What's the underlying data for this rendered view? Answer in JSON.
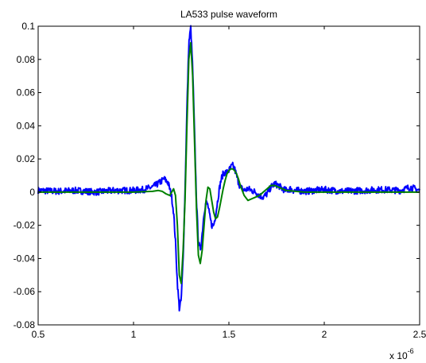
{
  "chart_data": {
    "type": "line",
    "title": "LA533 pulse waveform",
    "xlabel": "",
    "ylabel": "",
    "xlim": [
      0.5,
      2.5
    ],
    "ylim": [
      -0.08,
      0.1
    ],
    "x_ticks": [
      0.5,
      1,
      1.5,
      2,
      2.5
    ],
    "x_tick_labels": [
      "0.5",
      "1",
      "1.5",
      "2",
      "2.5"
    ],
    "y_ticks": [
      -0.08,
      -0.06,
      -0.04,
      -0.02,
      0,
      0.02,
      0.04,
      0.06,
      0.08,
      0.1
    ],
    "y_tick_labels": [
      "-0.08",
      "-0.06",
      "-0.04",
      "-0.02",
      "0",
      "0.02",
      "0.04",
      "0.06",
      "0.08",
      "0.1"
    ],
    "x_multiplier": {
      "base": "x 10",
      "exponent": "-6"
    },
    "grid": false,
    "legend": "none",
    "series": [
      {
        "color": "#0000ff",
        "x": [
          0.5,
          0.6,
          0.7,
          0.8,
          0.9,
          1.0,
          1.05,
          1.1,
          1.14,
          1.16,
          1.18,
          1.19,
          1.2,
          1.21,
          1.22,
          1.23,
          1.24,
          1.25,
          1.26,
          1.27,
          1.28,
          1.29,
          1.3,
          1.31,
          1.32,
          1.33,
          1.34,
          1.35,
          1.36,
          1.37,
          1.38,
          1.39,
          1.4,
          1.41,
          1.42,
          1.43,
          1.44,
          1.45,
          1.46,
          1.47,
          1.48,
          1.49,
          1.5,
          1.51,
          1.52,
          1.53,
          1.54,
          1.55,
          1.56,
          1.58,
          1.6,
          1.62,
          1.64,
          1.66,
          1.68,
          1.7,
          1.72,
          1.74,
          1.76,
          1.78,
          1.8,
          1.82,
          1.84,
          1.86,
          1.9,
          2.0,
          2.1,
          2.2,
          2.3,
          2.4,
          2.45,
          2.5
        ],
        "y": [
          0.001,
          0.0005,
          0.001,
          0,
          0.001,
          0.001,
          0.0015,
          0.003,
          0.006,
          0.008,
          0.006,
          0.002,
          -0.003,
          -0.012,
          -0.03,
          -0.055,
          -0.07,
          -0.065,
          -0.04,
          0.0,
          0.05,
          0.09,
          0.099,
          0.075,
          0.035,
          -0.005,
          -0.03,
          -0.035,
          -0.025,
          -0.012,
          -0.006,
          -0.008,
          -0.015,
          -0.02,
          -0.02,
          -0.014,
          -0.006,
          0.002,
          0.008,
          0.011,
          0.012,
          0.012,
          0.013,
          0.015,
          0.016,
          0.014,
          0.01,
          0.006,
          0.003,
          0.001,
          0.002,
          0.001,
          0.0,
          -0.002,
          -0.003,
          -0.001,
          0.003,
          0.005,
          0.004,
          0.002,
          0.001,
          0.002,
          0.001,
          0.001,
          0.0005,
          0.0015,
          0.0005,
          0.001,
          0.0015,
          0.001,
          0.003,
          0.001
        ]
      },
      {
        "color": "#008000",
        "x": [
          0.5,
          0.7,
          0.9,
          1.0,
          1.1,
          1.13,
          1.15,
          1.17,
          1.19,
          1.2,
          1.21,
          1.22,
          1.23,
          1.24,
          1.25,
          1.26,
          1.27,
          1.28,
          1.29,
          1.3,
          1.31,
          1.32,
          1.33,
          1.34,
          1.35,
          1.36,
          1.37,
          1.38,
          1.39,
          1.4,
          1.41,
          1.42,
          1.43,
          1.44,
          1.45,
          1.46,
          1.47,
          1.48,
          1.49,
          1.5,
          1.51,
          1.52,
          1.53,
          1.54,
          1.55,
          1.56,
          1.58,
          1.6,
          1.62,
          1.64,
          1.66,
          1.68,
          1.7,
          1.72,
          1.74,
          1.76,
          1.78,
          1.8,
          1.85,
          1.9,
          2.0,
          2.1,
          2.2,
          2.3,
          2.4,
          2.5
        ],
        "y": [
          0,
          0,
          0,
          0,
          0.0005,
          0.001,
          0.0005,
          -0.001,
          -0.002,
          0.0,
          0.002,
          -0.002,
          -0.02,
          -0.05,
          -0.055,
          -0.035,
          -0.005,
          0.04,
          0.08,
          0.09,
          0.07,
          0.03,
          -0.01,
          -0.038,
          -0.043,
          -0.035,
          -0.02,
          -0.005,
          0.003,
          0.002,
          -0.005,
          -0.012,
          -0.016,
          -0.015,
          -0.01,
          -0.004,
          0.002,
          0.007,
          0.011,
          0.013,
          0.014,
          0.014,
          0.013,
          0.011,
          0.008,
          0.004,
          -0.002,
          -0.005,
          -0.004,
          -0.003,
          -0.002,
          0.0,
          0.002,
          0.004,
          0.004,
          0.003,
          0.002,
          0.001,
          0.0005,
          0.0,
          0.0,
          0.0,
          0.0,
          0.0,
          0.0,
          0.0
        ]
      }
    ]
  }
}
